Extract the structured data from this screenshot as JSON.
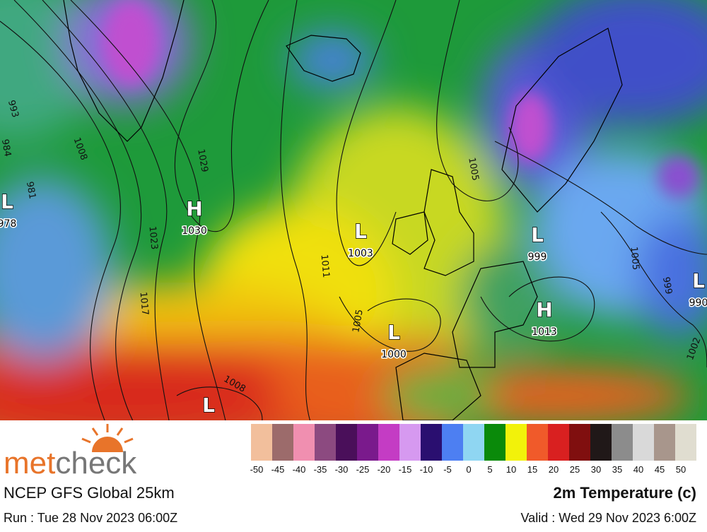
{
  "map": {
    "pressure_centers": [
      {
        "letter": "L",
        "value": 978
      },
      {
        "letter": "H",
        "value": 1030
      },
      {
        "letter": "L",
        "value": 1003
      },
      {
        "letter": "L",
        "value": 999
      },
      {
        "letter": "H",
        "value": 1013
      },
      {
        "letter": "L",
        "value": 1000
      },
      {
        "letter": "L"
      },
      {
        "letter": "L",
        "value": 990
      }
    ],
    "isobar_labels": [
      993,
      984,
      981,
      1008,
      1029,
      1023,
      1017,
      1011,
      1005,
      1008,
      1005,
      999,
      1005,
      1002
    ]
  },
  "legend": {
    "colors": [
      "#f2bf9c",
      "#9c6b6b",
      "#f08fb0",
      "#8c4a80",
      "#4a0f5a",
      "#7a1a8c",
      "#c43cc4",
      "#d699f0",
      "#2a0f70",
      "#4d7ff2",
      "#8fd6f2",
      "#0a8a0a",
      "#f2f20a",
      "#f05a2a",
      "#d92020",
      "#800f0f",
      "#201818",
      "#8c8c8c",
      "#d9d9d9",
      "#a8968c",
      "#e0ddd0"
    ],
    "labels": [
      -50,
      -45,
      -40,
      -35,
      -30,
      -25,
      -20,
      -15,
      -10,
      -5,
      0,
      5,
      10,
      15,
      20,
      25,
      30,
      35,
      40,
      45,
      50
    ]
  },
  "footer": {
    "logo": {
      "prefix": "met",
      "suffix": "check"
    },
    "model": "NCEP GFS Global 25km",
    "run": "Run : Tue 28 Nov 2023 06:00Z",
    "parameter": "2m Temperature (c)",
    "valid": "Valid : Wed 29 Nov 2023 6:00Z"
  }
}
